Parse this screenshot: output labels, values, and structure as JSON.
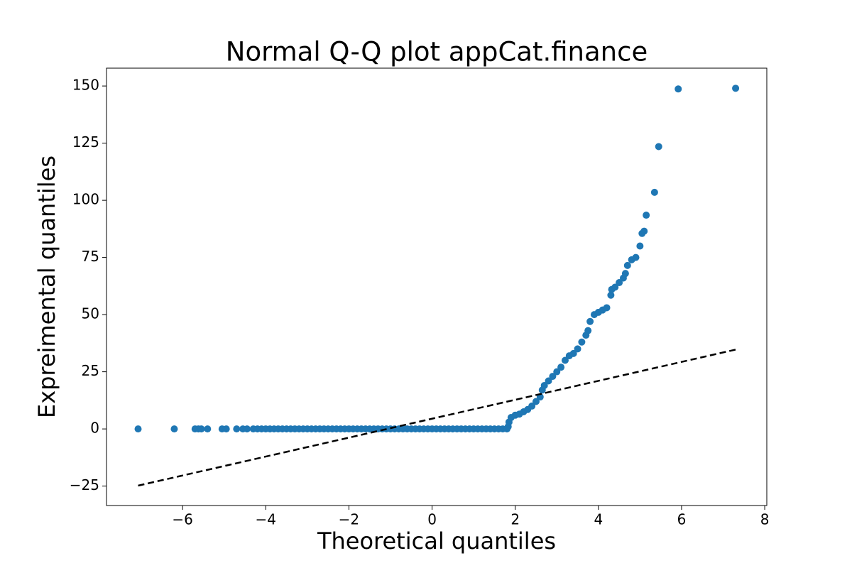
{
  "chart_data": {
    "type": "scatter",
    "title": "Normal Q-Q plot appCat.finance",
    "x_label": "Theoretical quantiles",
    "y_label": "Expreimental quantiles",
    "xlim": [
      -7.83,
      8.05
    ],
    "ylim": [
      -33.5,
      157.8
    ],
    "xticks": [
      {
        "value": -6,
        "label": "−6"
      },
      {
        "value": -4,
        "label": "−4"
      },
      {
        "value": -2,
        "label": "−2"
      },
      0,
      2,
      4,
      6,
      8
    ],
    "yticks": [
      {
        "value": -25,
        "label": "−25"
      },
      0,
      25,
      50,
      75,
      100,
      125,
      150
    ],
    "series": [
      {
        "type": "scatter",
        "color": "#1f77b4",
        "x": [
          -7.07,
          -6.2,
          -5.7,
          -5.62,
          -5.55,
          -5.4,
          -5.05,
          -4.95,
          -4.7,
          -4.55,
          -4.45,
          -4.3,
          -4.2,
          -4.1,
          -4.0,
          -3.9,
          -3.8,
          -3.7,
          -3.6,
          -3.5,
          -3.4,
          -3.3,
          -3.2,
          -3.1,
          -3.0,
          -2.9,
          -2.8,
          -2.7,
          -2.6,
          -2.5,
          -2.4,
          -2.3,
          -2.2,
          -2.1,
          -2.0,
          -1.9,
          -1.8,
          -1.7,
          -1.6,
          -1.5,
          -1.4,
          -1.3,
          -1.2,
          -1.1,
          -1.0,
          -0.9,
          -0.8,
          -0.7,
          -0.6,
          -0.5,
          -0.4,
          -0.3,
          -0.2,
          -0.1,
          0,
          0.1,
          0.2,
          0.3,
          0.4,
          0.5,
          0.6,
          0.7,
          0.8,
          0.9,
          1.0,
          1.1,
          1.2,
          1.3,
          1.4,
          1.5,
          1.6,
          1.7,
          1.8,
          1.83,
          1.85,
          1.9,
          2.0,
          2.1,
          2.2,
          2.3,
          2.4,
          2.5,
          2.6,
          2.65,
          2.7,
          2.8,
          2.9,
          3.0,
          3.1,
          3.2,
          3.3,
          3.4,
          3.5,
          3.6,
          3.7,
          3.75,
          3.8,
          3.9,
          4.0,
          4.1,
          4.2,
          4.3,
          4.32,
          4.4,
          4.5,
          4.6,
          4.65,
          4.7,
          4.8,
          4.9,
          5.0,
          5.05,
          5.1,
          5.15,
          5.35,
          5.45,
          5.92,
          7.3
        ],
        "y": [
          0,
          0,
          0,
          0,
          0,
          0,
          0,
          0,
          0,
          0,
          0,
          0,
          0,
          0,
          0,
          0,
          0,
          0,
          0,
          0,
          0,
          0,
          0,
          0,
          0,
          0,
          0,
          0,
          0,
          0,
          0,
          0,
          0,
          0,
          0,
          0,
          0,
          0,
          0,
          0,
          0,
          0,
          0,
          0,
          0,
          0,
          0,
          0,
          0,
          0,
          0,
          0,
          0,
          0,
          0,
          0,
          0,
          0,
          0,
          0,
          0,
          0,
          0,
          0,
          0,
          0,
          0,
          0,
          0,
          0,
          0,
          0,
          0,
          1,
          3,
          5,
          6,
          6.5,
          7.5,
          8.5,
          10,
          12,
          14,
          17,
          19,
          21,
          23,
          25,
          27,
          30,
          32,
          33,
          35,
          38,
          41,
          43,
          47,
          50,
          51,
          52,
          53,
          58.5,
          61,
          62,
          64,
          66,
          68,
          71.5,
          74,
          75,
          80,
          85.5,
          86.5,
          93.5,
          103.5,
          123.5,
          148.7,
          149
        ]
      },
      {
        "type": "line",
        "color": "#000000",
        "dash": true,
        "x": [
          -7.07,
          7.3
        ],
        "y": [
          -24.8,
          34.7
        ]
      }
    ]
  }
}
